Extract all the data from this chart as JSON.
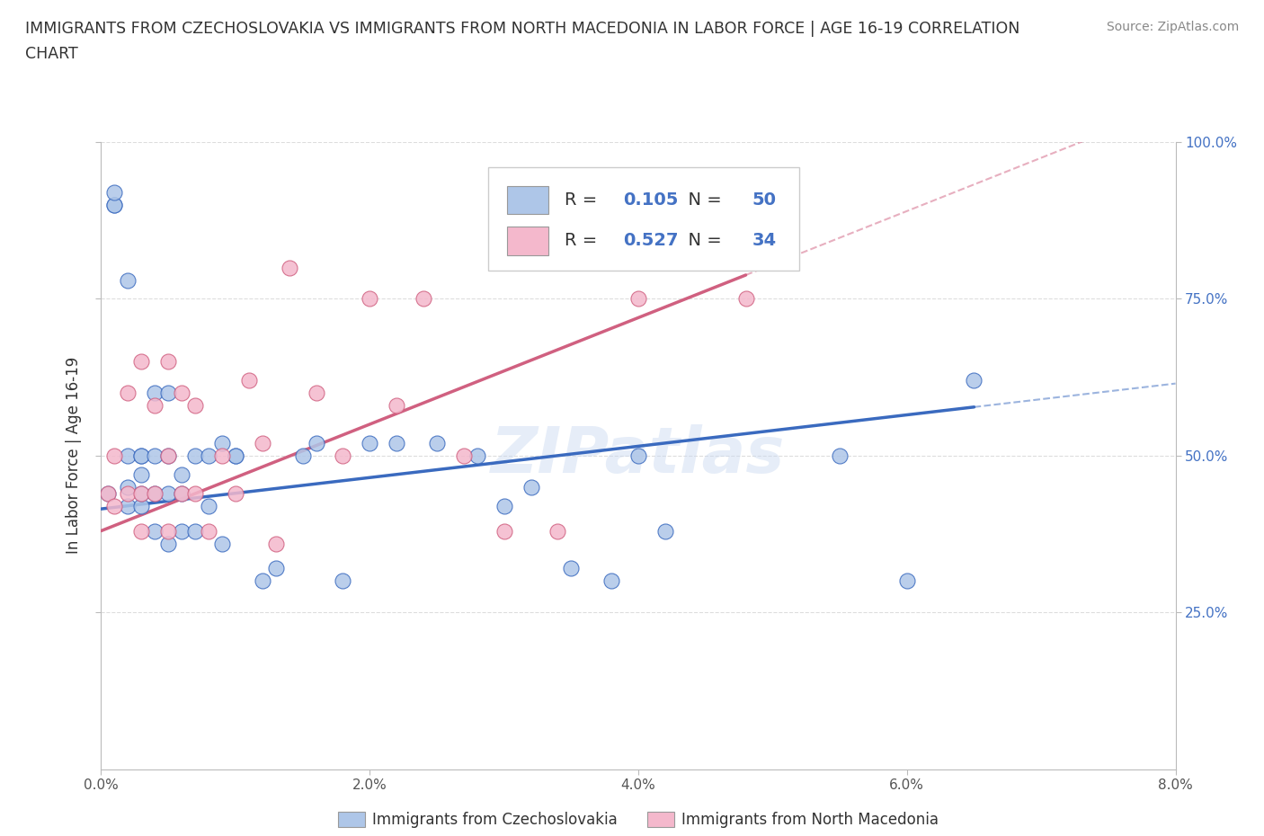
{
  "title_line1": "IMMIGRANTS FROM CZECHOSLOVAKIA VS IMMIGRANTS FROM NORTH MACEDONIA IN LABOR FORCE | AGE 16-19 CORRELATION",
  "title_line2": "CHART",
  "source": "Source: ZipAtlas.com",
  "ylabel": "In Labor Force | Age 16-19",
  "legend_label_1": "Immigrants from Czechoslovakia",
  "legend_label_2": "Immigrants from North Macedonia",
  "R1": 0.105,
  "N1": 50,
  "R2": 0.527,
  "N2": 34,
  "color1": "#aec6e8",
  "color2": "#f4b8cc",
  "trendline1_color": "#3a6abf",
  "trendline2_color": "#d06080",
  "xlim": [
    0.0,
    0.08
  ],
  "ylim": [
    0.0,
    1.0
  ],
  "xticks": [
    0.0,
    0.02,
    0.04,
    0.06,
    0.08
  ],
  "xticklabels": [
    "0.0%",
    "2.0%",
    "4.0%",
    "6.0%",
    "8.0%"
  ],
  "right_yticks": [
    0.25,
    0.5,
    0.75,
    1.0
  ],
  "right_yticklabels": [
    "25.0%",
    "50.0%",
    "75.0%",
    "100.0%"
  ],
  "grid_yticks": [
    0.25,
    0.5,
    0.75,
    1.0
  ],
  "scatter1_x": [
    0.0005,
    0.001,
    0.001,
    0.001,
    0.002,
    0.002,
    0.002,
    0.002,
    0.003,
    0.003,
    0.003,
    0.003,
    0.003,
    0.004,
    0.004,
    0.004,
    0.004,
    0.005,
    0.005,
    0.005,
    0.005,
    0.006,
    0.006,
    0.006,
    0.007,
    0.007,
    0.008,
    0.008,
    0.009,
    0.009,
    0.01,
    0.01,
    0.012,
    0.013,
    0.015,
    0.016,
    0.018,
    0.02,
    0.022,
    0.025,
    0.028,
    0.03,
    0.032,
    0.035,
    0.038,
    0.04,
    0.042,
    0.055,
    0.06,
    0.065
  ],
  "scatter1_y": [
    0.44,
    0.9,
    0.9,
    0.92,
    0.42,
    0.45,
    0.5,
    0.78,
    0.42,
    0.44,
    0.47,
    0.5,
    0.5,
    0.38,
    0.44,
    0.5,
    0.6,
    0.36,
    0.44,
    0.5,
    0.6,
    0.38,
    0.44,
    0.47,
    0.38,
    0.5,
    0.42,
    0.5,
    0.36,
    0.52,
    0.5,
    0.5,
    0.3,
    0.32,
    0.5,
    0.52,
    0.3,
    0.52,
    0.52,
    0.52,
    0.5,
    0.42,
    0.45,
    0.32,
    0.3,
    0.5,
    0.38,
    0.5,
    0.3,
    0.62
  ],
  "scatter2_x": [
    0.0005,
    0.001,
    0.001,
    0.002,
    0.002,
    0.003,
    0.003,
    0.003,
    0.004,
    0.004,
    0.005,
    0.005,
    0.005,
    0.006,
    0.006,
    0.007,
    0.007,
    0.008,
    0.009,
    0.01,
    0.011,
    0.012,
    0.013,
    0.014,
    0.016,
    0.018,
    0.02,
    0.022,
    0.024,
    0.027,
    0.03,
    0.034,
    0.04,
    0.048
  ],
  "scatter2_y": [
    0.44,
    0.42,
    0.5,
    0.44,
    0.6,
    0.38,
    0.44,
    0.65,
    0.44,
    0.58,
    0.38,
    0.5,
    0.65,
    0.44,
    0.6,
    0.44,
    0.58,
    0.38,
    0.5,
    0.44,
    0.62,
    0.52,
    0.36,
    0.8,
    0.6,
    0.5,
    0.75,
    0.58,
    0.75,
    0.5,
    0.38,
    0.38,
    0.75,
    0.75
  ],
  "trendline1_intercept": 0.415,
  "trendline1_slope": 2.5,
  "trendline2_intercept": 0.38,
  "trendline2_slope": 8.5,
  "watermark": "ZIPatlas",
  "background_color": "#ffffff",
  "grid_color": "#dddddd",
  "right_label_color": "#4472c4",
  "text_color": "#333333",
  "source_color": "#888888"
}
